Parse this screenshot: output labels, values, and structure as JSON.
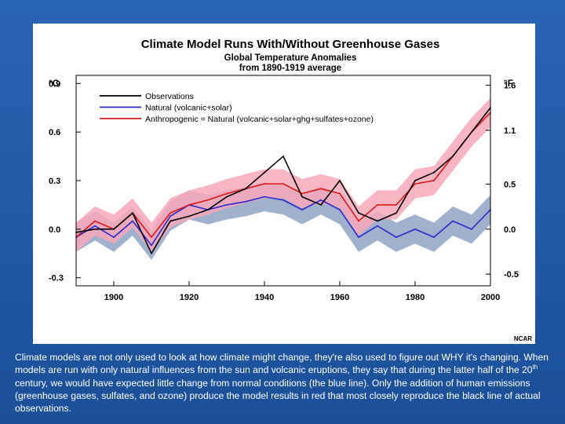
{
  "chart_data": {
    "type": "line",
    "title": "Climate Model Runs With/Without Greenhouse Gases",
    "subtitle_line1": "Global Temperature Anomalies",
    "subtitle_line2": "from 1890-1919 average",
    "ylabel_left": "°C",
    "ylabel_right": "°F",
    "xlim": [
      1890,
      2000
    ],
    "ylim": [
      -0.35,
      0.95
    ],
    "x_ticks": [
      {
        "value": 1900,
        "label": "1900"
      },
      {
        "value": 1920,
        "label": "1920"
      },
      {
        "value": 1940,
        "label": "1940"
      },
      {
        "value": 1960,
        "label": "1960"
      },
      {
        "value": 1980,
        "label": "1980"
      },
      {
        "value": 2000,
        "label": "2000"
      }
    ],
    "y_ticks_left": [
      {
        "value": -0.3,
        "label": "-0.3"
      },
      {
        "value": 0.0,
        "label": "0.0"
      },
      {
        "value": 0.3,
        "label": "0.3"
      },
      {
        "value": 0.6,
        "label": "0.6"
      },
      {
        "value": 0.9,
        "label": "0.9"
      }
    ],
    "y_ticks_right": [
      {
        "value": -0.2778,
        "label": "-0.5"
      },
      {
        "value": 0.0,
        "label": "0.0"
      },
      {
        "value": 0.2778,
        "label": "0.5"
      },
      {
        "value": 0.6111,
        "label": "1.1"
      },
      {
        "value": 0.8889,
        "label": "1.6"
      }
    ],
    "legend_position": "top-left",
    "grid": false,
    "x": [
      1890,
      1895,
      1900,
      1905,
      1910,
      1915,
      1920,
      1925,
      1930,
      1935,
      1940,
      1945,
      1950,
      1955,
      1960,
      1965,
      1970,
      1975,
      1980,
      1985,
      1990,
      1995,
      2000
    ],
    "series": [
      {
        "name": "Observations",
        "color": "#000000",
        "values": [
          -0.02,
          0.0,
          0.0,
          0.1,
          -0.15,
          0.05,
          0.08,
          0.12,
          0.2,
          0.25,
          0.35,
          0.45,
          0.2,
          0.15,
          0.3,
          0.1,
          0.05,
          0.1,
          0.3,
          0.35,
          0.45,
          0.6,
          0.75
        ]
      },
      {
        "name": "Natural (volcanic+solar)",
        "color": "#2a2acc",
        "band_color": "#8fa3c4",
        "values": [
          -0.05,
          0.02,
          -0.05,
          0.05,
          -0.1,
          0.08,
          0.15,
          0.12,
          0.15,
          0.17,
          0.2,
          0.18,
          0.12,
          0.18,
          0.12,
          -0.05,
          0.02,
          -0.05,
          0.0,
          -0.05,
          0.05,
          0.0,
          0.12
        ]
      },
      {
        "name": "Anthropogenic = Natural (volcanic+solar+ghg+sulfates+ozone)",
        "color": "#d81818",
        "band_color": "#f7a8b8",
        "values": [
          -0.05,
          0.05,
          0.0,
          0.1,
          -0.05,
          0.1,
          0.15,
          0.18,
          0.22,
          0.25,
          0.28,
          0.28,
          0.22,
          0.25,
          0.22,
          0.05,
          0.15,
          0.15,
          0.28,
          0.3,
          0.45,
          0.6,
          0.72
        ]
      }
    ]
  },
  "credit": "NCAR",
  "caption": {
    "part1": "Climate models are not only used to look at how climate might change, they're also used to figure out WHY it's changing. When models are run with only natural influences from the sun and volcanic eruptions, they say that during the latter half of the 20",
    "sup": "th",
    "part2": " century, we would have expected little change from normal conditions (the blue line). Only the addition of human emissions (greenhouse gases, sulfates, and ozone) produce the model results in red that most closely reproduce the black line of actual observations."
  }
}
